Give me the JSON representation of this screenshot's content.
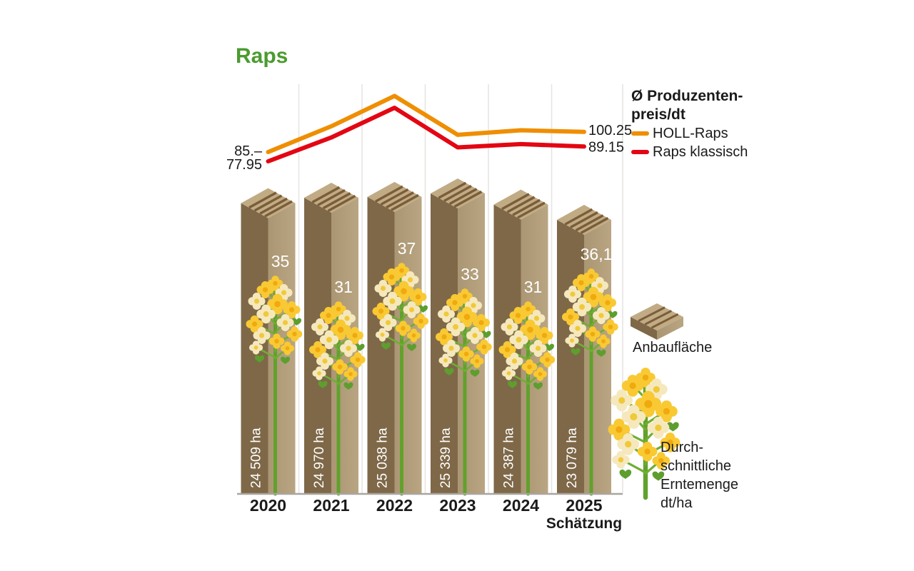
{
  "title": "Raps",
  "legend": {
    "price_title_line1": "Ø Produzenten-",
    "price_title_line2": "preis/dt",
    "series": [
      {
        "name": "HOLL-Raps",
        "color": "#ef8e00"
      },
      {
        "name": "Raps klassisch",
        "color": "#e30613"
      }
    ],
    "area_label": "Anbaufläche",
    "yield_label_lines": {
      "0": "Durch-",
      "1": "schnittliche",
      "2": "Erntemenge",
      "3": "dt/ha"
    }
  },
  "chart_data": {
    "type": "composite",
    "categories": [
      "2020",
      "2021",
      "2022",
      "2023",
      "2024",
      "2025"
    ],
    "x_sublabel": {
      "category": "2025",
      "text": "Schätzung"
    },
    "lines": {
      "title": "Ø Produzentenpreis/dt",
      "series": [
        {
          "name": "HOLL-Raps",
          "color": "#ef8e00",
          "values": [
            85,
            104.5,
            127.5,
            98,
            101.5,
            100.25
          ],
          "first_label": "85.–",
          "last_label": "100.25"
        },
        {
          "name": "Raps klassisch",
          "color": "#e30613",
          "values": [
            77.95,
            96,
            118.5,
            88.5,
            91,
            89.15
          ],
          "first_label": "77.95",
          "last_label": "89.15"
        }
      ],
      "note": "only first and last values are labeled in the figure; middle values estimated from line position"
    },
    "area_bars": {
      "name": "Anbaufläche",
      "unit": "ha",
      "values": [
        24509,
        24970,
        25038,
        25339,
        24387,
        23079
      ],
      "labels": [
        "24 509 ha",
        "24 970 ha",
        "25 038 ha",
        "25 339 ha",
        "24 387 ha",
        "23 079 ha"
      ]
    },
    "yield": {
      "name": "Durchschnittliche Erntemenge",
      "unit": "dt/ha",
      "values": [
        35,
        31,
        37,
        33,
        31,
        36.1
      ],
      "labels": [
        "35",
        "31",
        "37",
        "33",
        "31",
        "36,1"
      ]
    }
  },
  "colors": {
    "title_green": "#4a9b2f",
    "bar_dark": "#7e6848",
    "bar_light_1": "#ab9674",
    "bar_light_2": "#b9a582",
    "bar_top": "#c1ab85",
    "bar_stripe": "#7a5d39",
    "stem_green": "#61a12d",
    "pedicel_green": "#6fae32",
    "leaf_green": "#5d9e2e",
    "petal_gold": "#f9c933",
    "petal_pale": "#f6e8bd",
    "center_gold": "#f0a90e",
    "center_pale": "#f0c93a",
    "gridline": "#e7e5e2",
    "baseline": "#a9a5a0",
    "text_black": "#1a1a1a",
    "bar_text_white": "#ffffff"
  }
}
